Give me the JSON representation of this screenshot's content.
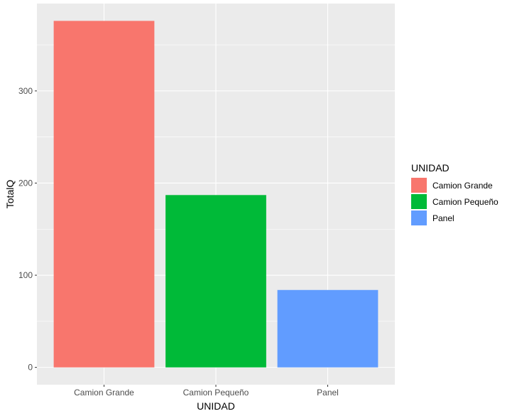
{
  "chart_data": {
    "type": "bar",
    "categories": [
      "Camion Grande",
      "Camion Pequeño",
      "Panel"
    ],
    "values": [
      376,
      187,
      84
    ],
    "colors": [
      "#F8766D",
      "#00BA38",
      "#619CFF"
    ],
    "xlabel": "UNIDAD",
    "ylabel": "TotalQ",
    "ylim": [
      0,
      376
    ],
    "yticks": [
      0,
      100,
      200,
      300
    ],
    "ytick_labels": [
      "0",
      "100",
      "200",
      "300"
    ],
    "grid": true,
    "panel_background": "#EBEBEB",
    "legend": {
      "title": "UNIDAD",
      "position": "right",
      "items": [
        "Camion Grande",
        "Camion Pequeño",
        "Panel"
      ]
    }
  }
}
